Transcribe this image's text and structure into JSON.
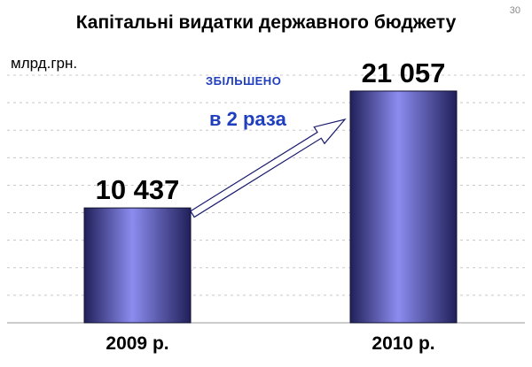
{
  "page_number": "30",
  "chart_data": {
    "type": "bar",
    "title": "Капітальні видатки державного бюджету",
    "unit_label": "млрд.грн.",
    "categories": [
      "2009 р.",
      "2010 р."
    ],
    "values": [
      10437,
      21057
    ],
    "value_labels": [
      "10 437",
      "21 057"
    ],
    "ylim": [
      0,
      22500
    ],
    "grid": true,
    "annotation": {
      "top": "ЗБІЛЬШЕНО",
      "main": "в 2 раза"
    },
    "colors": {
      "bar_edge": "#20205a",
      "bar_mid": "#8c8cf0",
      "annotation": "#1f3fbf",
      "gridline": "#c8c8c8"
    }
  }
}
